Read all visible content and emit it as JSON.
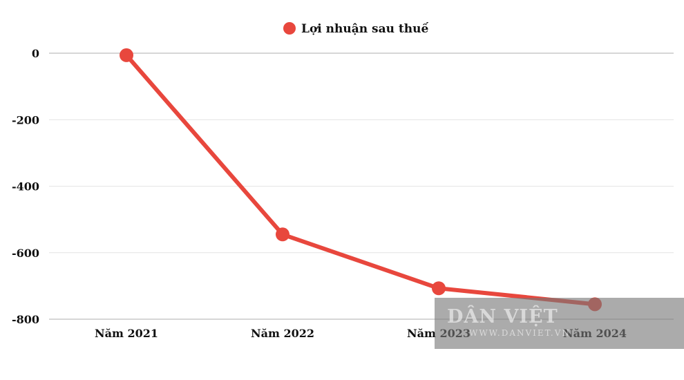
{
  "chart_data": {
    "type": "line",
    "categories": [
      "Năm 2021",
      "Năm 2022",
      "Năm 2023",
      "Năm 2024"
    ],
    "series": [
      {
        "name": "Lợi nhuận sau thuế",
        "values": [
          -6,
          -545,
          -707,
          -755
        ],
        "color": "#e8473d"
      }
    ],
    "title": "",
    "xlabel": "",
    "ylabel": "",
    "ylim": [
      -800,
      0
    ],
    "yticks": [
      "0",
      "-200",
      "-400",
      "-600",
      "-800"
    ],
    "grid": true,
    "legend_position": "top"
  },
  "watermark": {
    "title": "DÂN VIỆT",
    "url": "WWW.DANVIET.VN"
  }
}
